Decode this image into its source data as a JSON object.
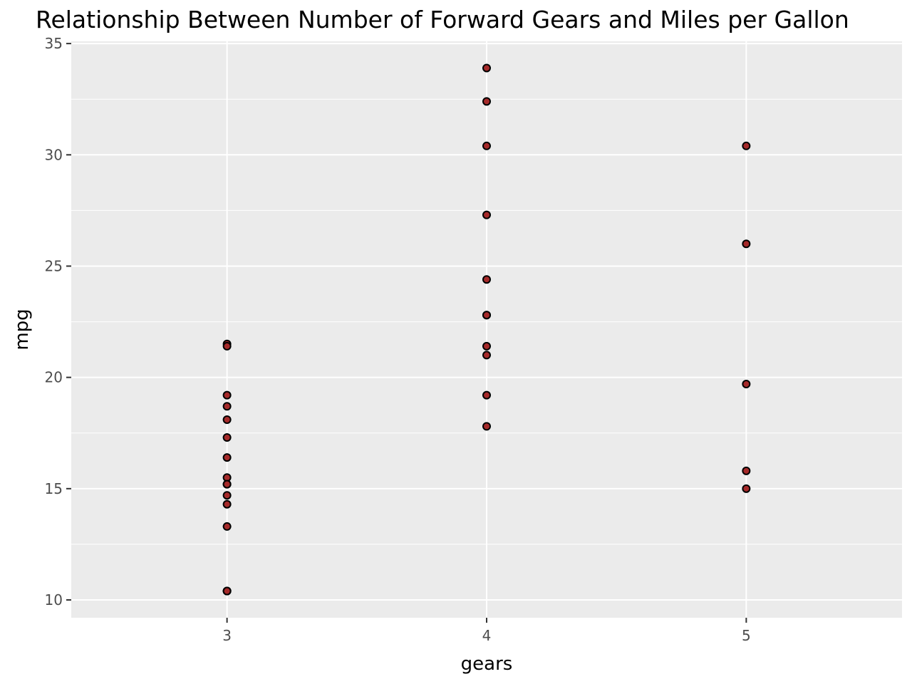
{
  "chart_data": {
    "type": "scatter",
    "title": "Relationship Between Number of Forward Gears and Miles per Gallon",
    "xlabel": "gears",
    "ylabel": "mpg",
    "x_ticks": [
      3,
      4,
      5
    ],
    "y_ticks": [
      10,
      15,
      20,
      25,
      30,
      35
    ],
    "xlim": [
      2.4,
      5.6
    ],
    "ylim": [
      9.2,
      35.1
    ],
    "grid": true,
    "point_fill": "#a52a2a",
    "point_stroke": "#000000",
    "panel_background": "#ebebeb",
    "series": [
      {
        "x": [
          3,
          3,
          3,
          3,
          3,
          3,
          3,
          3,
          3,
          3,
          3,
          3,
          3,
          3,
          3,
          3,
          4,
          4,
          4,
          4,
          4,
          4,
          4,
          4,
          4,
          4,
          4,
          5,
          5,
          5,
          5,
          5
        ],
        "y": [
          21.5,
          21.4,
          19.2,
          18.7,
          18.1,
          17.3,
          16.4,
          15.5,
          15.2,
          15.2,
          14.7,
          14.3,
          13.3,
          10.4,
          10.4,
          10.4,
          33.9,
          32.4,
          30.4,
          27.3,
          24.4,
          22.8,
          22.8,
          21.4,
          21.0,
          19.2,
          17.8,
          30.4,
          26.0,
          19.7,
          15.8,
          15.0
        ]
      }
    ]
  }
}
